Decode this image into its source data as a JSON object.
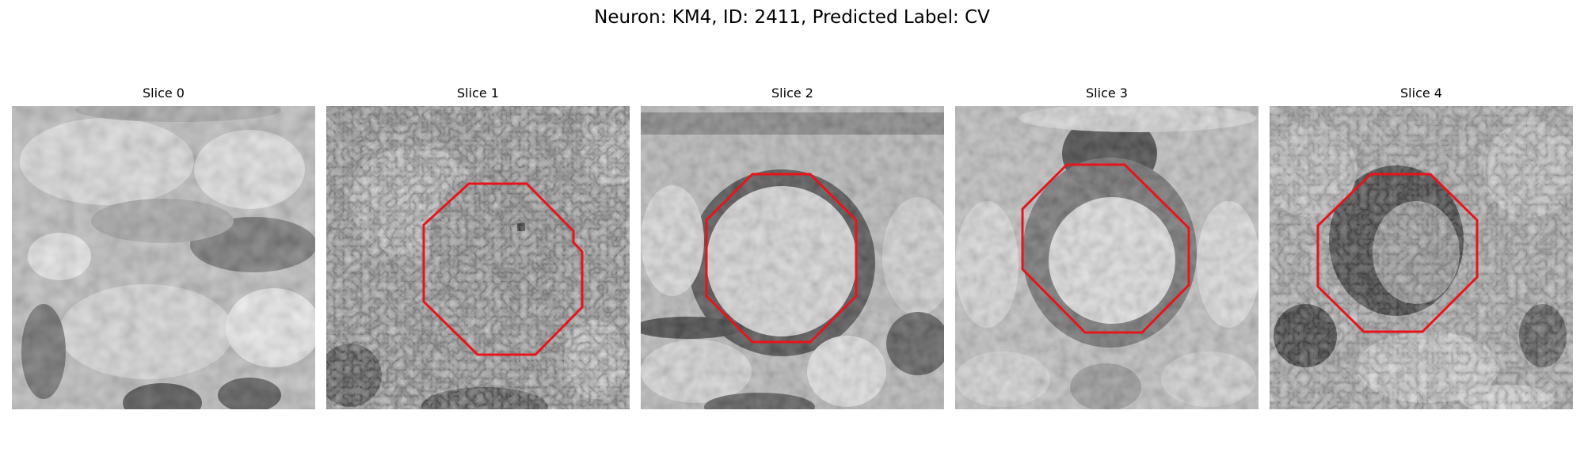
{
  "figure": {
    "title": "Neuron: KM4, ID: 2411, Predicted Label: CV"
  },
  "contour_color": "#e8141b",
  "panels": [
    {
      "title": "Slice 0",
      "contour": false
    },
    {
      "title": "Slice 1",
      "contour": true
    },
    {
      "title": "Slice 2",
      "contour": true
    },
    {
      "title": "Slice 3",
      "contour": true
    },
    {
      "title": "Slice 4",
      "contour": true
    }
  ]
}
